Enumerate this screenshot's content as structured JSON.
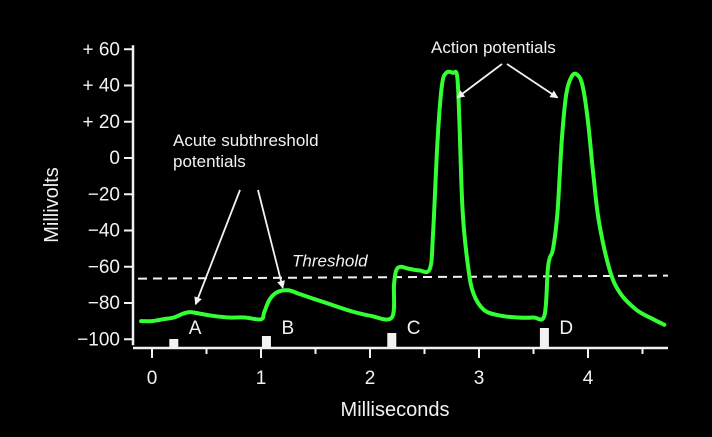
{
  "chart_data": {
    "type": "line",
    "xlabel": "Milliseconds",
    "ylabel": "Millivolts",
    "xlim": [
      -0.1,
      4.7
    ],
    "ylim": [
      -100,
      60
    ],
    "x_ticks": [
      0,
      1,
      2,
      3,
      4
    ],
    "y_ticks": [
      60,
      40,
      20,
      0,
      -20,
      -40,
      -60,
      -80,
      -100
    ],
    "y_tick_labels": [
      "+ 60",
      "+ 40",
      "+ 20",
      "0",
      "−20",
      "−40",
      "−60",
      "−80",
      "−100"
    ],
    "threshold": {
      "label": "Threshold",
      "value": -66
    },
    "series": [
      {
        "color": "#33ff33",
        "x": [
          -0.1,
          0.0,
          0.1,
          0.2,
          0.28,
          0.35,
          0.45,
          0.55,
          0.7,
          0.85,
          1.0,
          1.03,
          1.08,
          1.15,
          1.25,
          1.35,
          1.45,
          1.6,
          1.8,
          2.0,
          2.2,
          2.22,
          2.24,
          2.28,
          2.35,
          2.45,
          2.55,
          2.58,
          2.62,
          2.66,
          2.7,
          2.76,
          2.8,
          2.82,
          2.85,
          2.9,
          2.95,
          3.05,
          3.2,
          3.35,
          3.5,
          3.6,
          3.63,
          3.65,
          3.68,
          3.72,
          3.76,
          3.8,
          3.85,
          3.9,
          3.95,
          4.0,
          4.05,
          4.1,
          4.2,
          4.3,
          4.45,
          4.6,
          4.7
        ],
        "y": [
          -90,
          -90,
          -89,
          -88,
          -86,
          -85,
          -86,
          -87,
          -88,
          -88,
          -89,
          -85,
          -78,
          -74,
          -73,
          -75,
          -77,
          -80,
          -84,
          -87,
          -88,
          -70,
          -62,
          -60,
          -61,
          -62,
          -61,
          -40,
          10,
          40,
          47,
          47,
          45,
          20,
          -30,
          -60,
          -75,
          -84,
          -87,
          -88,
          -88,
          -87,
          -62,
          -55,
          -50,
          -30,
          10,
          35,
          45,
          46,
          40,
          20,
          -10,
          -35,
          -62,
          -75,
          -84,
          -89,
          -92
        ]
      }
    ],
    "stimuli": [
      {
        "label": "A",
        "x": 0.2,
        "size": "small"
      },
      {
        "label": "B",
        "x": 1.05,
        "size": "medium"
      },
      {
        "label": "C",
        "x": 2.2,
        "size": "large"
      },
      {
        "label": "D",
        "x": 3.6,
        "size": "largest"
      }
    ],
    "annotations": [
      {
        "text_lines": [
          "Acute subthreshold",
          "potentials"
        ],
        "targets": [
          {
            "x": 0.4,
            "y": -84
          },
          {
            "x": 1.2,
            "y": -75
          }
        ]
      },
      {
        "text_lines": [
          "Action potentials"
        ],
        "targets": [
          {
            "x": 2.8,
            "y": 30
          },
          {
            "x": 3.72,
            "y": 30
          }
        ]
      }
    ]
  }
}
